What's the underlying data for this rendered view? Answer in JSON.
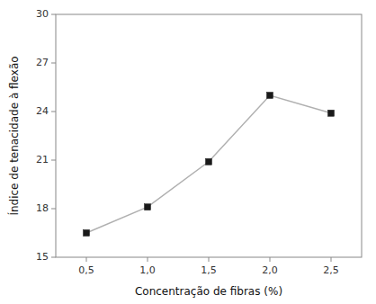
{
  "chart_data": {
    "type": "line",
    "xlabel": "Concentração de fibras (%)",
    "ylabel": "Índice de tenacidade à flexão",
    "x": [
      0.5,
      1.0,
      1.5,
      2.0,
      2.5
    ],
    "values": [
      16.5,
      18.1,
      20.9,
      25.0,
      23.9
    ],
    "color": "#b0b0b0",
    "marker": "square",
    "xlim": [
      0.25,
      2.75
    ],
    "ylim": [
      15,
      30
    ],
    "xticks": [
      {
        "value": 0.5,
        "label": "0,5"
      },
      {
        "value": 1.0,
        "label": "1,0"
      },
      {
        "value": 1.5,
        "label": "1,5"
      },
      {
        "value": 2.0,
        "label": "2,0"
      },
      {
        "value": 2.5,
        "label": "2,5"
      }
    ],
    "yticks": [
      15,
      18,
      21,
      24,
      27,
      30
    ],
    "grid": false
  }
}
